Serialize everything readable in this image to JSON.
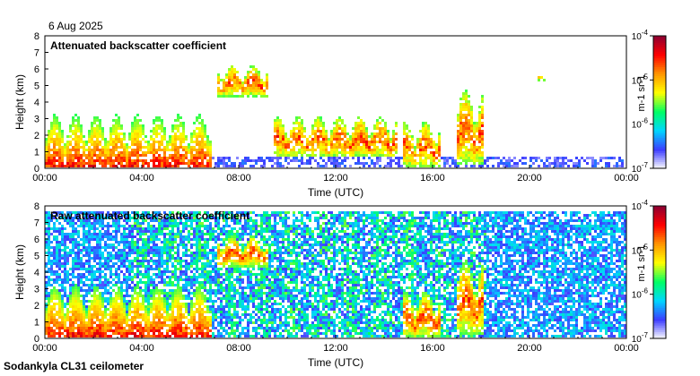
{
  "header": {
    "date": "6 Aug 2025"
  },
  "footer": {
    "site": "Sodankyla CL31 ceilometer"
  },
  "chart_data": [
    {
      "type": "heatmap",
      "title": "Attenuated backscatter coefficient",
      "xlabel": "Time (UTC)",
      "ylabel": "Height (km)",
      "x_ticks": [
        "00:00",
        "04:00",
        "08:00",
        "12:00",
        "16:00",
        "20:00",
        "00:00"
      ],
      "y_ticks": [
        "0",
        "1",
        "2",
        "3",
        "4",
        "5",
        "6",
        "7",
        "8"
      ],
      "xlim_hours": [
        0,
        24
      ],
      "ylim_km": [
        0,
        8
      ],
      "colorbar": {
        "scale": "log",
        "range": [
          1e-07,
          0.0001
        ],
        "tick_labels": [
          "10-7",
          "10-6",
          "10-5",
          "10-4"
        ],
        "unit_label": "m-1 sr-1",
        "colors": [
          "#ffffff",
          "#3c3cff",
          "#00d7ff",
          "#00ff64",
          "#ffff00",
          "#ff9600",
          "#ff0000",
          "#8c0032"
        ]
      },
      "features": [
        {
          "kind": "noise_floor",
          "start_hour": 6.0,
          "end_hour": 24.0,
          "top_km": 0.7
        },
        {
          "kind": "boundary_layer_cloud",
          "start_hour": 0.0,
          "end_hour": 6.9,
          "top_km": 3.2,
          "intensity": "high"
        },
        {
          "kind": "cloud",
          "start_hour": 7.1,
          "end_hour": 9.2,
          "base_km": 4.3,
          "top_km": 6.2
        },
        {
          "kind": "scattered_cloud",
          "start_hour": 9.5,
          "end_hour": 14.5,
          "base_km": 0.6,
          "top_km": 3.1
        },
        {
          "kind": "convective_cloud",
          "start_hour": 14.8,
          "end_hour": 16.3,
          "base_km": 0.0,
          "top_km": 2.8
        },
        {
          "kind": "convective_cloud",
          "start_hour": 17.0,
          "end_hour": 18.1,
          "base_km": 0.2,
          "top_km": 4.8
        },
        {
          "kind": "cloud",
          "start_hour": 20.3,
          "end_hour": 20.7,
          "base_km": 5.3,
          "top_km": 5.6
        }
      ]
    },
    {
      "type": "heatmap",
      "title": "Raw attenuated backscatter coefficient",
      "xlabel": "Time (UTC)",
      "ylabel": "Height (km)",
      "x_ticks": [
        "00:00",
        "04:00",
        "08:00",
        "12:00",
        "16:00",
        "20:00",
        "00:00"
      ],
      "y_ticks": [
        "0",
        "1",
        "2",
        "3",
        "4",
        "5",
        "6",
        "7",
        "8"
      ],
      "xlim_hours": [
        0,
        24
      ],
      "ylim_km": [
        0,
        8
      ],
      "colorbar": {
        "scale": "log",
        "range": [
          1e-07,
          0.0001
        ],
        "tick_labels": [
          "10-7",
          "10-6",
          "10-5",
          "10-4"
        ],
        "unit_label": "m-1 sr-1",
        "colors": [
          "#ffffff",
          "#3c3cff",
          "#00d7ff",
          "#00ff64",
          "#ffff00",
          "#ff9600",
          "#ff0000",
          "#8c0032"
        ]
      },
      "features": [
        {
          "kind": "background_noise",
          "start_hour": 0.0,
          "end_hour": 24.0,
          "top_km": 7.7
        },
        {
          "kind": "enhanced_noise",
          "start_hour": 3.5,
          "end_hour": 18.2,
          "top_km": 7.7
        },
        {
          "kind": "boundary_layer_cloud",
          "start_hour": 0.0,
          "end_hour": 6.9,
          "top_km": 3.2,
          "intensity": "high"
        },
        {
          "kind": "cloud",
          "start_hour": 7.1,
          "end_hour": 9.2,
          "base_km": 4.3,
          "top_km": 6.2
        },
        {
          "kind": "convective_cloud",
          "start_hour": 14.8,
          "end_hour": 16.3,
          "base_km": 0.0,
          "top_km": 2.8
        },
        {
          "kind": "convective_cloud",
          "start_hour": 17.0,
          "end_hour": 18.1,
          "base_km": 0.2,
          "top_km": 4.8
        }
      ]
    }
  ]
}
